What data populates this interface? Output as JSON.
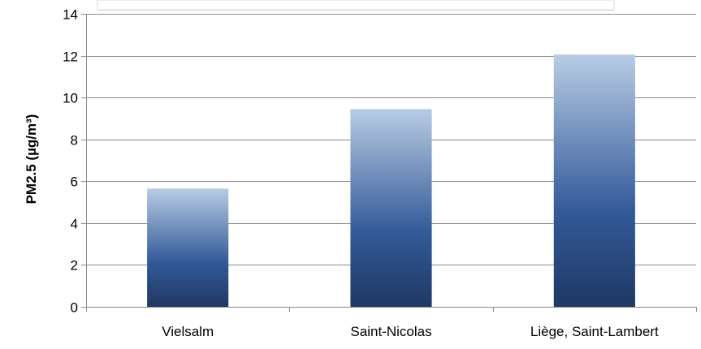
{
  "chart_data": {
    "type": "bar",
    "categories": [
      "Vielsalm",
      "Saint-Nicolas",
      "Liège, Saint-Lambert"
    ],
    "values": [
      5.65,
      9.45,
      12.05
    ],
    "title": "",
    "xlabel": "",
    "ylabel": "PM2.5 (µg/m³)",
    "ylim": [
      0,
      14
    ],
    "yticks": [
      0,
      2,
      4,
      6,
      8,
      10,
      12,
      14
    ],
    "grid": true,
    "bar_gradient": {
      "top": "#b8cce4",
      "bottom": "#1f3864",
      "mid": "#335a99"
    }
  }
}
